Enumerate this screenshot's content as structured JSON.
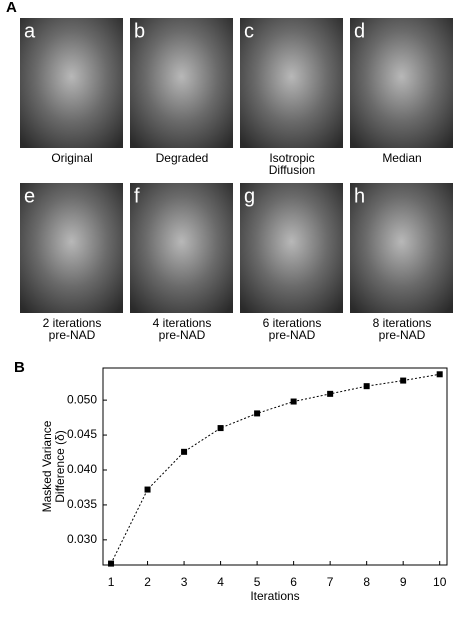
{
  "figure": {
    "panel_labels": [
      "A",
      "B"
    ],
    "panels": [
      {
        "letter": "a",
        "caption": [
          "Original"
        ]
      },
      {
        "letter": "b",
        "caption": [
          "Degraded"
        ]
      },
      {
        "letter": "c",
        "caption": [
          "Isotropic",
          "Diffusion"
        ]
      },
      {
        "letter": "d",
        "caption": [
          "Median"
        ]
      },
      {
        "letter": "e",
        "caption": [
          "2 iterations",
          "pre-NAD"
        ]
      },
      {
        "letter": "f",
        "caption": [
          "4 iterations",
          "pre-NAD"
        ]
      },
      {
        "letter": "g",
        "caption": [
          "6 iterations",
          "pre-NAD"
        ]
      },
      {
        "letter": "h",
        "caption": [
          "8 iterations",
          "pre-NAD"
        ]
      }
    ]
  },
  "chart_data": {
    "type": "line",
    "x_label": "Iterations",
    "y_label": [
      "Masked Variance",
      "Difference (δ)"
    ],
    "x": [
      1,
      2,
      3,
      4,
      5,
      6,
      7,
      8,
      9,
      10
    ],
    "series": [
      {
        "color": "#000000",
        "values": [
          0.0266,
          0.0372,
          0.0426,
          0.046,
          0.0481,
          0.0498,
          0.0509,
          0.052,
          0.0528,
          0.0537
        ]
      }
    ],
    "xlim": [
      0.78,
      10.2
    ],
    "xticks": [
      1,
      2,
      3,
      4,
      5,
      6,
      7,
      8,
      9,
      10
    ],
    "ylim": [
      0.0264,
      0.0546
    ],
    "yticks": [
      {
        "value": 0.03,
        "label": "0.030"
      },
      {
        "value": 0.035,
        "label": "0.035"
      },
      {
        "value": 0.04,
        "label": "0.040"
      },
      {
        "value": 0.045,
        "label": "0.045"
      },
      {
        "value": 0.05,
        "label": "0.050"
      }
    ],
    "grid": false
  }
}
